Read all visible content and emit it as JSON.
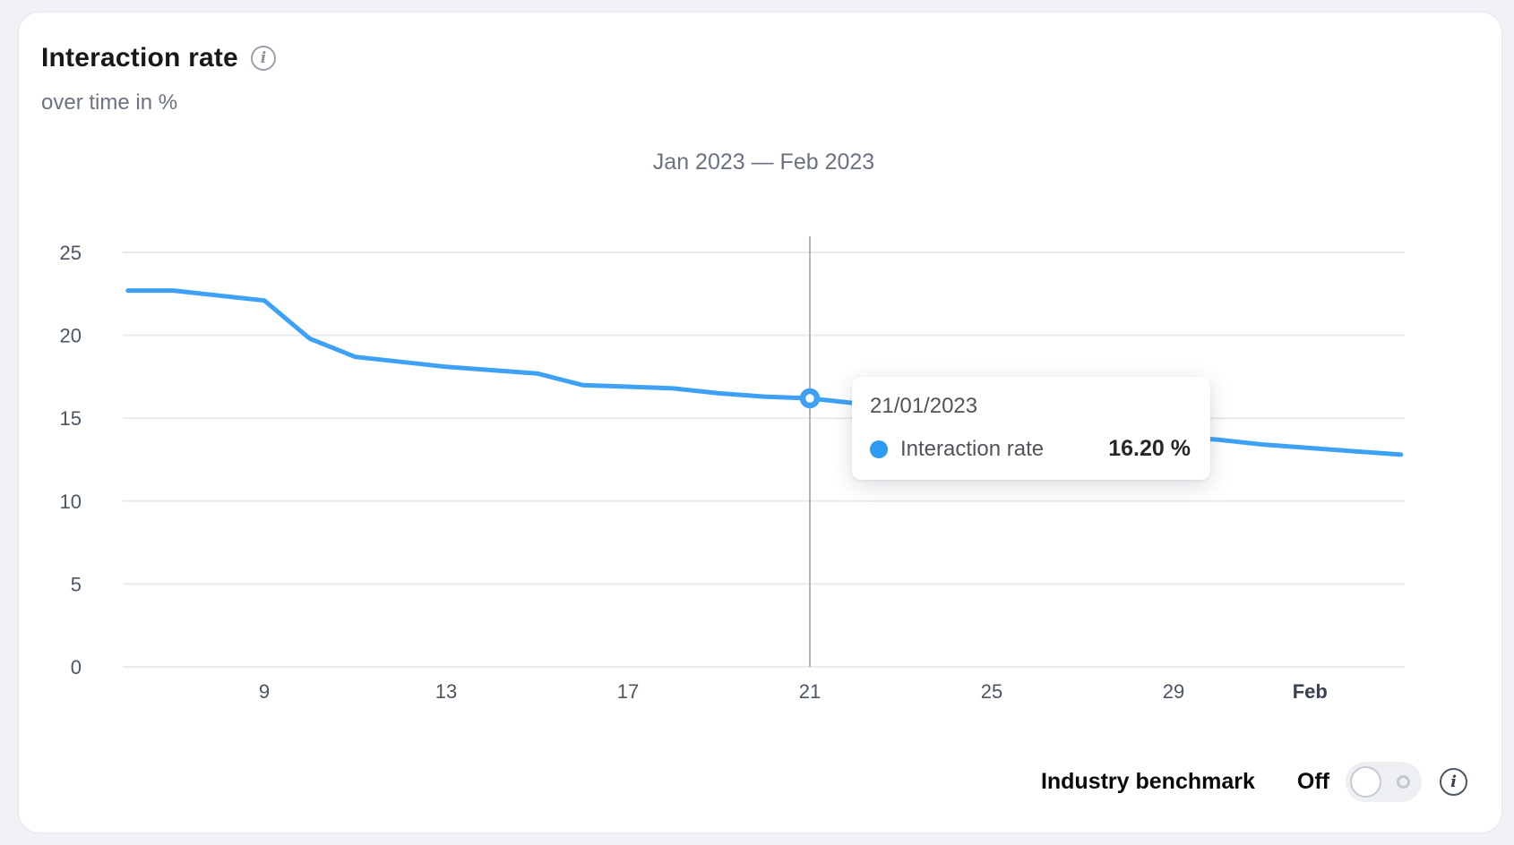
{
  "card": {
    "title": "Interaction rate",
    "subtitle": "over time in %",
    "info_glyph": "i"
  },
  "chart_data": {
    "type": "line",
    "title": "Jan 2023 — Feb 2023",
    "xlabel": "",
    "ylabel": "over time in %",
    "ylim": [
      0,
      25
    ],
    "yticks": [
      0,
      5,
      10,
      15,
      20,
      25
    ],
    "grid": "horizontal",
    "legend_position": "none",
    "x": [
      "06/01/2023",
      "07/01/2023",
      "08/01/2023",
      "09/01/2023",
      "10/01/2023",
      "11/01/2023",
      "12/01/2023",
      "13/01/2023",
      "14/01/2023",
      "15/01/2023",
      "16/01/2023",
      "17/01/2023",
      "18/01/2023",
      "19/01/2023",
      "20/01/2023",
      "21/01/2023",
      "22/01/2023",
      "23/01/2023",
      "24/01/2023",
      "25/01/2023",
      "26/01/2023",
      "27/01/2023",
      "28/01/2023",
      "29/01/2023",
      "30/01/2023",
      "31/01/2023",
      "01/02/2023",
      "02/02/2023",
      "03/02/2023"
    ],
    "xticks": [
      {
        "label": "9",
        "day": 9,
        "bold": false
      },
      {
        "label": "13",
        "day": 13,
        "bold": false
      },
      {
        "label": "17",
        "day": 17,
        "bold": false
      },
      {
        "label": "21",
        "day": 21,
        "bold": false
      },
      {
        "label": "25",
        "day": 25,
        "bold": false
      },
      {
        "label": "29",
        "day": 29,
        "bold": false
      },
      {
        "label": "Feb",
        "day": 32,
        "bold": true
      }
    ],
    "series": [
      {
        "name": "Interaction rate",
        "color": "#3da1f5",
        "values": [
          22.7,
          22.7,
          22.4,
          22.1,
          19.8,
          18.7,
          18.4,
          18.1,
          17.9,
          17.7,
          17.0,
          16.9,
          16.8,
          16.5,
          16.3,
          16.2,
          15.9,
          15.6,
          15.3,
          15.0,
          14.7,
          14.5,
          14.2,
          13.9,
          13.7,
          13.4,
          13.2,
          13.0,
          12.8
        ]
      }
    ],
    "highlight": {
      "date": "21/01/2023",
      "day": 21,
      "value": 16.2
    }
  },
  "tooltip": {
    "date": "21/01/2023",
    "series_label": "Interaction rate",
    "value_text": "16.20 %"
  },
  "footer": {
    "benchmark_label": "Industry benchmark",
    "toggle_state": "Off",
    "info_glyph": "i"
  },
  "colors": {
    "line": "#3da1f5",
    "tooltip_dot": "#2f9bf0",
    "grid": "#e9eaec",
    "hover_line": "#b0b4bc",
    "axis_text": "#4b5563",
    "axis_text_bold": "#374151"
  }
}
